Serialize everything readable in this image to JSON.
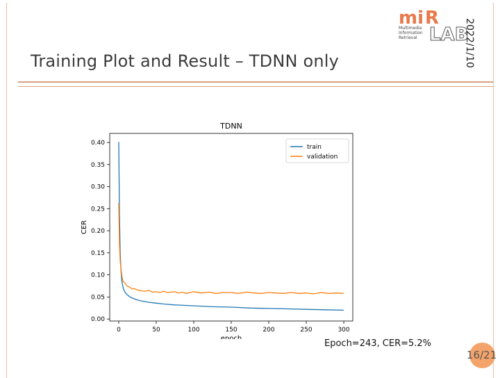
{
  "slide": {
    "title": "Training Plot and Result – TDNN only",
    "date": "2022/1/10",
    "caption": "Epoch=243, CER=5.2%",
    "page": "16/21"
  },
  "logo": {
    "text_mi": "mi",
    "text_r": "R",
    "text_lab": "LAB",
    "line1": "Multimedia",
    "line2": "Information",
    "line3": "Retrieval"
  },
  "colors": {
    "accent": "#d6a07f",
    "badge": "#f4a46b",
    "train": "#1f77b4",
    "validation": "#ff7f0e",
    "logo": "#e8794a"
  },
  "chart_data": {
    "type": "line",
    "title": "TDNN",
    "xlabel": "epoch",
    "ylabel": "CER",
    "xlim": [
      -12,
      312
    ],
    "ylim": [
      -0.0045,
      0.4205
    ],
    "xticks": [
      0,
      50,
      100,
      150,
      200,
      250,
      300
    ],
    "yticks": [
      0.0,
      0.05,
      0.1,
      0.15,
      0.2,
      0.25,
      0.3,
      0.35,
      0.4
    ],
    "ytick_labels": [
      "0.00",
      "0.05",
      "0.10",
      "0.15",
      "0.20",
      "0.25",
      "0.30",
      "0.35",
      "0.40"
    ],
    "grid": false,
    "legend": "top-right",
    "series": [
      {
        "name": "train",
        "color": "#1f77b4",
        "x": [
          0,
          1,
          2,
          3,
          4,
          5,
          6,
          8,
          10,
          12,
          15,
          20,
          25,
          30,
          40,
          50,
          60,
          75,
          100,
          125,
          150,
          175,
          200,
          225,
          250,
          275,
          300
        ],
        "y": [
          0.401,
          0.24,
          0.15,
          0.11,
          0.088,
          0.078,
          0.07,
          0.062,
          0.057,
          0.054,
          0.05,
          0.046,
          0.043,
          0.041,
          0.038,
          0.036,
          0.034,
          0.032,
          0.03,
          0.028,
          0.027,
          0.025,
          0.024,
          0.023,
          0.022,
          0.021,
          0.02
        ]
      },
      {
        "name": "validation",
        "color": "#ff7f0e",
        "x": [
          0,
          1,
          2,
          3,
          4,
          5,
          6,
          8,
          10,
          12,
          15,
          18,
          20,
          25,
          30,
          35,
          40,
          45,
          50,
          55,
          60,
          65,
          70,
          75,
          80,
          85,
          90,
          95,
          100,
          110,
          120,
          130,
          140,
          150,
          160,
          170,
          180,
          190,
          200,
          210,
          220,
          230,
          240,
          250,
          260,
          270,
          280,
          290,
          300
        ],
        "y": [
          0.263,
          0.17,
          0.13,
          0.115,
          0.1,
          0.09,
          0.085,
          0.082,
          0.077,
          0.074,
          0.072,
          0.068,
          0.069,
          0.066,
          0.064,
          0.063,
          0.065,
          0.061,
          0.062,
          0.06,
          0.063,
          0.06,
          0.061,
          0.062,
          0.059,
          0.061,
          0.058,
          0.06,
          0.062,
          0.059,
          0.061,
          0.058,
          0.06,
          0.06,
          0.058,
          0.061,
          0.059,
          0.058,
          0.06,
          0.059,
          0.058,
          0.06,
          0.058,
          0.059,
          0.057,
          0.06,
          0.058,
          0.059,
          0.058
        ]
      }
    ]
  }
}
